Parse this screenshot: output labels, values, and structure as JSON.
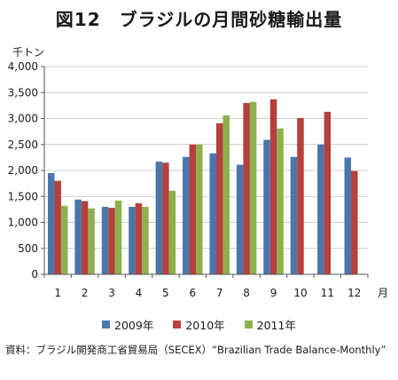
{
  "title": "図12　ブラジルの月間砂糖輸出量",
  "source": "資料：ブラジル開発商工省貿易局（SECEX）“Brazilian Trade Balance-Monthly”",
  "colors": {
    "2009": "#4a76ac",
    "2010": "#b5403d",
    "2011": "#8fb04d"
  },
  "chart_data": {
    "type": "bar",
    "ylabel": "千トン",
    "xlabel": "月",
    "ylim": [
      0,
      4000
    ],
    "yticks": [
      {
        "value": 0,
        "label": "0"
      },
      {
        "value": 500,
        "label": "500"
      },
      {
        "value": 1000,
        "label": "1,000"
      },
      {
        "value": 1500,
        "label": "1,500"
      },
      {
        "value": 2000,
        "label": "2,000"
      },
      {
        "value": 2500,
        "label": "2,500"
      },
      {
        "value": 3000,
        "label": "3,000"
      },
      {
        "value": 3500,
        "label": "3,500"
      },
      {
        "value": 4000,
        "label": "4,000"
      }
    ],
    "grid": true,
    "legend_position": "bottom",
    "categories": [
      "1",
      "2",
      "3",
      "4",
      "5",
      "6",
      "7",
      "8",
      "9",
      "10",
      "11",
      "12"
    ],
    "series": [
      {
        "name": "2009年",
        "color_key": "2009",
        "values": [
          1950,
          1440,
          1300,
          1300,
          2170,
          2260,
          2330,
          2110,
          2590,
          2260,
          2500,
          2250
        ]
      },
      {
        "name": "2010年",
        "color_key": "2010",
        "values": [
          1800,
          1410,
          1280,
          1370,
          2150,
          2500,
          2910,
          3300,
          3370,
          3010,
          3130,
          1990
        ]
      },
      {
        "name": "2011年",
        "color_key": "2011",
        "values": [
          1320,
          1270,
          1420,
          1300,
          1610,
          2500,
          3060,
          3320,
          2810,
          null,
          null,
          null
        ]
      }
    ]
  }
}
